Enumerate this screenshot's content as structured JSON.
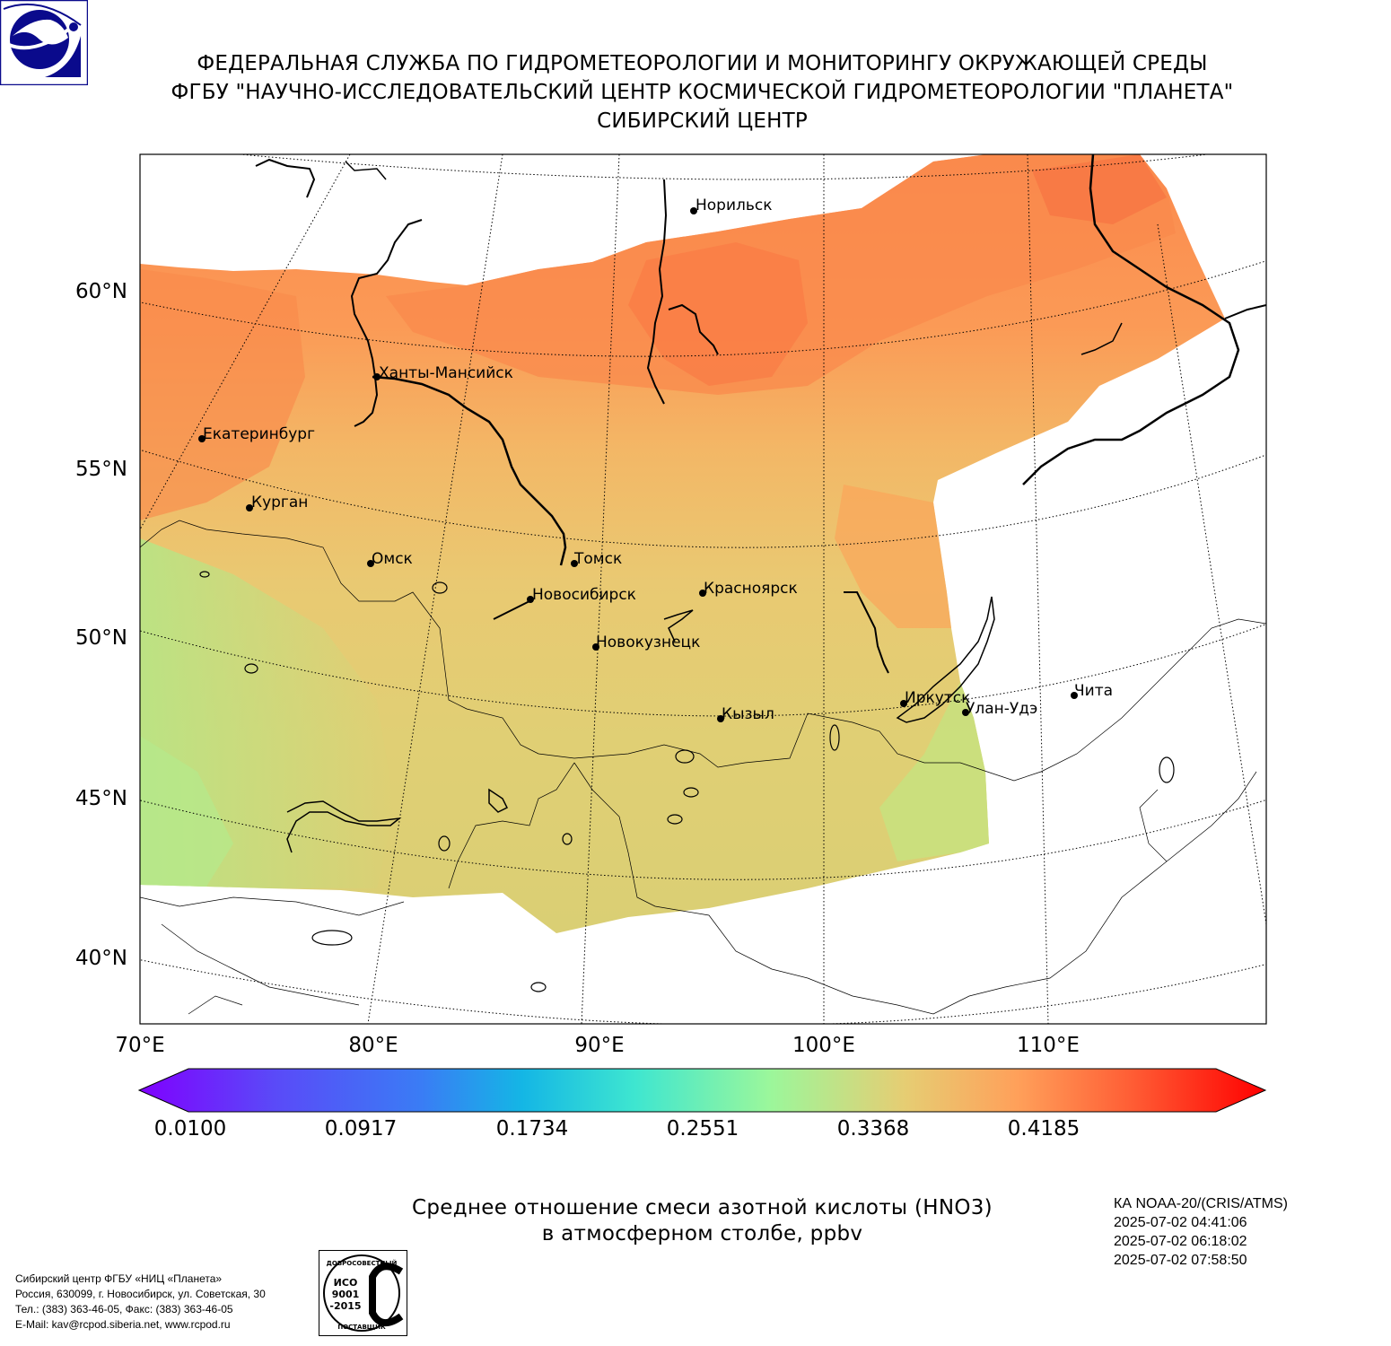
{
  "header": {
    "line1": "ФЕДЕРАЛЬНАЯ СЛУЖБА ПО ГИДРОМЕТЕОРОЛОГИИ И МОНИТОРИНГУ ОКРУЖАЮЩЕЙ СРЕДЫ",
    "line2": "ФГБУ \"НАУЧНО-ИССЛЕДОВАТЕЛЬСКИЙ ЦЕНТР КОСМИЧЕСКОЙ ГИДРОМЕТЕОРОЛОГИИ \"ПЛАНЕТА\"",
    "line3": "СИБИРСКИЙ ЦЕНТР"
  },
  "logo": {
    "icon": "roshydromet-logo-icon",
    "color": "#0a0a8c"
  },
  "map": {
    "lat_labels": [
      "60°N",
      "55°N",
      "50°N",
      "45°N",
      "40°N"
    ],
    "lon_labels": [
      "70°E",
      "80°E",
      "90°E",
      "100°E",
      "110°E"
    ],
    "cities": [
      {
        "name": "Норильск"
      },
      {
        "name": "Ханты-Мансийск"
      },
      {
        "name": "Екатеринбург"
      },
      {
        "name": "Курган"
      },
      {
        "name": "Омск"
      },
      {
        "name": "Томск"
      },
      {
        "name": "Новосибирск"
      },
      {
        "name": "Красноярск"
      },
      {
        "name": "Новокузнецк"
      },
      {
        "name": "Иркутск"
      },
      {
        "name": "Кызыл"
      },
      {
        "name": "Улан-Удэ"
      },
      {
        "name": "Чита"
      }
    ]
  },
  "colorbar": {
    "ticks": [
      "0.0100",
      "0.0917",
      "0.1734",
      "0.2551",
      "0.3368",
      "0.4185"
    ],
    "colors": {
      "min": "#8000ff",
      "blue": "#3a7cf5",
      "cyan": "#18c8e0",
      "green": "#9bf79b",
      "khaki": "#e6cd73",
      "orange": "#ffa05a",
      "max": "#ff0000"
    }
  },
  "caption": {
    "line1": "Среднее отношение смеси азотной кислоты (HNO3)",
    "line2": "в атмосферном столбе, ppbv"
  },
  "meta": {
    "satellite": "КА NOAA-20/(CRIS/ATMS)",
    "time1": "2025-07-02 04:41:06",
    "time2": "2025-07-02 06:18:02",
    "time3": "2025-07-02 07:58:50"
  },
  "footer": {
    "org": "Сибирский центр ФГБУ «НИЦ «Планета»",
    "address": "Россия, 630099, г. Новосибирск, ул. Советская, 30",
    "phone": "Тел.: (383) 363-46-05, Факс: (383) 363-46-05",
    "email": "E-Mail: kav@rcpod.siberia.net, www.rcpod.ru"
  },
  "stamp": {
    "top": "ДОБРОСОВЕСТНЫЙ",
    "iso1": "ИСО",
    "iso2": "9001",
    "iso3": "-2015",
    "bottom": "ПОСТАВЩИК"
  }
}
